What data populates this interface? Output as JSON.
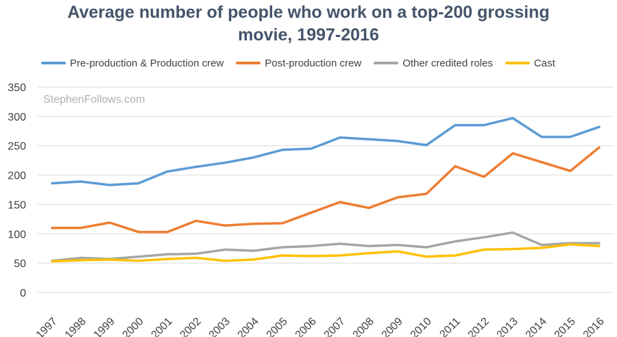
{
  "chart_data": {
    "type": "line",
    "title_line1": "Average number of people who work on a top-200 grossing",
    "title_line2": "movie, 1997-2016",
    "watermark": "StephenFollows.com",
    "xlabel": "",
    "ylabel": "",
    "ylim": [
      0,
      350
    ],
    "y_ticks": [
      "0",
      "50",
      "100",
      "150",
      "200",
      "250",
      "300",
      "350"
    ],
    "categories": [
      "1997",
      "1998",
      "1999",
      "2000",
      "2001",
      "2002",
      "2003",
      "2004",
      "2005",
      "2006",
      "2007",
      "2008",
      "2009",
      "2010",
      "2011",
      "2012",
      "2013",
      "2014",
      "2015",
      "2016"
    ],
    "series": [
      {
        "name": "Pre-production & Production crew",
        "color": "#5B9BD5",
        "values": [
          186,
          189,
          183,
          186,
          206,
          214,
          221,
          230,
          243,
          245,
          264,
          261,
          258,
          251,
          285,
          285,
          297,
          265,
          265,
          282
        ]
      },
      {
        "name": "Post-production crew",
        "color": "#ED7D31",
        "values": [
          110,
          110,
          119,
          103,
          103,
          122,
          114,
          117,
          118,
          136,
          154,
          144,
          162,
          168,
          215,
          197,
          237,
          222,
          207,
          247
        ]
      },
      {
        "name": "Other credited roles",
        "color": "#A5A5A5",
        "values": [
          54,
          59,
          57,
          61,
          65,
          66,
          73,
          71,
          77,
          79,
          83,
          79,
          81,
          77,
          87,
          94,
          102,
          81,
          84,
          84
        ]
      },
      {
        "name": "Cast",
        "color": "#FFC000",
        "values": [
          53,
          55,
          56,
          54,
          57,
          59,
          54,
          56,
          63,
          62,
          63,
          67,
          70,
          61,
          63,
          73,
          74,
          76,
          82,
          79
        ]
      }
    ],
    "grid": true,
    "legend_position": "top"
  }
}
